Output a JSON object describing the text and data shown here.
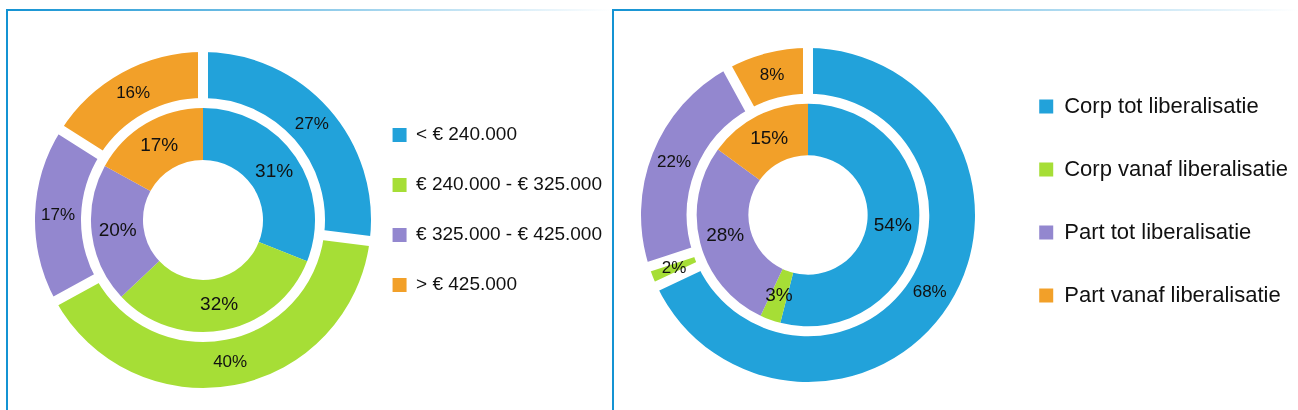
{
  "chart_data": [
    {
      "type": "donut",
      "categories": [
        "< € 240.000",
        "€ 240.000 - € 325.000",
        "€ 325.000 - € 425.000",
        "> € 425.000"
      ],
      "colors": [
        "#22a2da",
        "#a6de36",
        "#9387cf",
        "#f2a029"
      ],
      "legend": "right",
      "series": [
        {
          "values": [
            27,
            40,
            17,
            16
          ],
          "value_labels": [
            "27%",
            "40%",
            "17%",
            "16%"
          ]
        },
        {
          "values": [
            31,
            32,
            20,
            17
          ],
          "value_labels": [
            "31%",
            "32%",
            "20%",
            "17%"
          ]
        }
      ]
    },
    {
      "type": "donut",
      "categories": [
        "Corp tot liberalisatie",
        "Corp vanaf liberalisatie",
        "Part tot liberalisatie",
        "Part vanaf liberalisatie"
      ],
      "colors": [
        "#22a2da",
        "#a6de36",
        "#9387cf",
        "#f2a029"
      ],
      "legend": "right",
      "series": [
        {
          "values": [
            68,
            2,
            22,
            8
          ],
          "value_labels": [
            "68%",
            "2%",
            "22%",
            "8%"
          ]
        },
        {
          "values": [
            54,
            3,
            28,
            15
          ],
          "value_labels": [
            "54%",
            "3%",
            "28%",
            "15%"
          ]
        }
      ]
    }
  ]
}
